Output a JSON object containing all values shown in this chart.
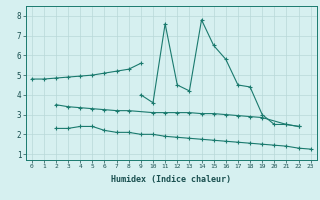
{
  "xlabel": "Humidex (Indice chaleur)",
  "line_color": "#1a7a6e",
  "background_color": "#d6f0f0",
  "grid_color": "#b8d8d8",
  "xlim": [
    -0.5,
    23.5
  ],
  "ylim": [
    0.7,
    8.5
  ],
  "xticks": [
    0,
    1,
    2,
    3,
    4,
    5,
    6,
    7,
    8,
    9,
    10,
    11,
    12,
    13,
    14,
    15,
    16,
    17,
    18,
    19,
    20,
    21,
    22,
    23
  ],
  "yticks": [
    1,
    2,
    3,
    4,
    5,
    6,
    7,
    8
  ],
  "series": [
    {
      "x": [
        0,
        1,
        2,
        3,
        4,
        5,
        6,
        7,
        8,
        9
      ],
      "y": [
        4.8,
        4.8,
        4.85,
        4.9,
        4.95,
        5.0,
        5.1,
        5.2,
        5.3,
        5.6
      ]
    },
    {
      "x": [
        2,
        3,
        4,
        5,
        6,
        7,
        8,
        10,
        11,
        12,
        13,
        14,
        15,
        16,
        17,
        18,
        19,
        21,
        22
      ],
      "y": [
        3.5,
        3.4,
        3.35,
        3.3,
        3.25,
        3.2,
        3.2,
        3.1,
        3.1,
        3.1,
        3.1,
        3.05,
        3.05,
        3.0,
        2.95,
        2.9,
        2.85,
        2.5,
        2.4
      ]
    },
    {
      "x": [
        2,
        3,
        4,
        5,
        6,
        7,
        8,
        9,
        10,
        11,
        12,
        13,
        14,
        15,
        16,
        17,
        18,
        19,
        20,
        21,
        22,
        23
      ],
      "y": [
        2.3,
        2.3,
        2.4,
        2.4,
        2.2,
        2.1,
        2.1,
        2.0,
        2.0,
        1.9,
        1.85,
        1.8,
        1.75,
        1.7,
        1.65,
        1.6,
        1.55,
        1.5,
        1.45,
        1.4,
        1.3,
        1.25
      ]
    },
    {
      "x": [
        9,
        10,
        11,
        12,
        13,
        14,
        15,
        16,
        17,
        18,
        19,
        20,
        21,
        22
      ],
      "y": [
        4.0,
        3.6,
        7.6,
        4.5,
        4.2,
        7.8,
        6.5,
        5.8,
        4.5,
        4.4,
        3.0,
        2.5,
        2.5,
        2.4
      ]
    }
  ]
}
